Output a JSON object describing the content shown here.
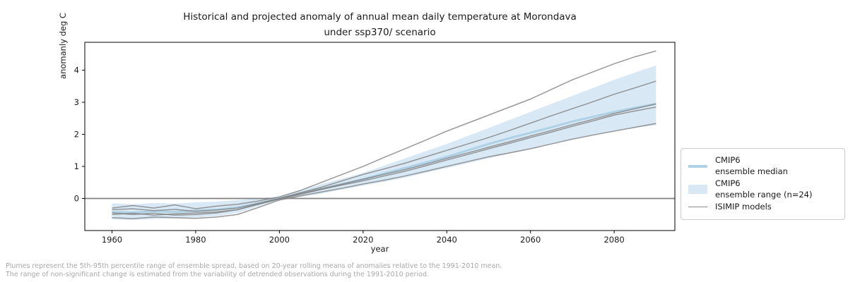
{
  "header": {
    "title": "Historical and projected anomaly of annual mean daily temperature at Morondava\nunder ssp370/ scenario"
  },
  "chart_data": {
    "type": "line",
    "title": "Historical and projected anomaly of annual mean daily temperature at Morondava under ssp370/ scenario",
    "xlabel": "year",
    "ylabel": "anomanly deg C",
    "xlim": [
      1953.5,
      2094.5
    ],
    "ylim": [
      -1.0,
      4.87
    ],
    "xticks": [
      1960,
      1980,
      2000,
      2020,
      2040,
      2060,
      2080
    ],
    "yticks": [
      0,
      1,
      2,
      3,
      4
    ],
    "zero_line": 0,
    "grid": false,
    "legend_position": "right",
    "x": [
      1960,
      1965,
      1970,
      1975,
      1980,
      1985,
      1990,
      1995,
      2000,
      2005,
      2010,
      2015,
      2020,
      2025,
      2030,
      2035,
      2040,
      2045,
      2050,
      2055,
      2060,
      2065,
      2070,
      2075,
      2080,
      2085,
      2090
    ],
    "band": {
      "name": "CMIP6 ensemble range (n=24)",
      "color": "#d9e8f5",
      "upper": [
        -0.15,
        -0.18,
        -0.14,
        -0.16,
        -0.12,
        -0.1,
        -0.05,
        0.0,
        0.06,
        0.25,
        0.45,
        0.62,
        0.8,
        1.02,
        1.25,
        1.48,
        1.7,
        1.95,
        2.2,
        2.45,
        2.7,
        2.95,
        3.2,
        3.45,
        3.7,
        3.93,
        4.15
      ],
      "lower": [
        -0.65,
        -0.67,
        -0.64,
        -0.62,
        -0.6,
        -0.55,
        -0.45,
        -0.25,
        -0.05,
        0.05,
        0.15,
        0.28,
        0.4,
        0.52,
        0.65,
        0.8,
        0.95,
        1.1,
        1.25,
        1.4,
        1.55,
        1.7,
        1.85,
        2.0,
        2.1,
        2.2,
        2.28
      ]
    },
    "series": [
      {
        "name": "CMIP6 ensemble median",
        "color": "#aed1e6",
        "width": 3,
        "opacity": 1,
        "values": [
          -0.42,
          -0.44,
          -0.4,
          -0.42,
          -0.38,
          -0.35,
          -0.28,
          -0.15,
          0.0,
          0.15,
          0.3,
          0.45,
          0.6,
          0.78,
          0.95,
          1.12,
          1.3,
          1.5,
          1.7,
          1.88,
          2.05,
          2.22,
          2.4,
          2.55,
          2.7,
          2.83,
          2.95
        ]
      },
      {
        "name": "ISIMIP model 1",
        "color": "#808080",
        "width": 1.5,
        "opacity": 0.8,
        "values": [
          -0.3,
          -0.22,
          -0.3,
          -0.2,
          -0.32,
          -0.24,
          -0.18,
          -0.08,
          0.05,
          0.25,
          0.5,
          0.75,
          1.0,
          1.28,
          1.55,
          1.82,
          2.1,
          2.35,
          2.6,
          2.85,
          3.1,
          3.4,
          3.7,
          3.95,
          4.2,
          4.42,
          4.6
        ]
      },
      {
        "name": "ISIMIP model 2",
        "color": "#808080",
        "width": 1.5,
        "opacity": 0.8,
        "values": [
          -0.45,
          -0.5,
          -0.46,
          -0.52,
          -0.5,
          -0.45,
          -0.35,
          -0.18,
          0.0,
          0.18,
          0.35,
          0.55,
          0.75,
          0.92,
          1.1,
          1.3,
          1.5,
          1.7,
          1.9,
          2.12,
          2.35,
          2.58,
          2.8,
          3.02,
          3.25,
          3.45,
          3.66
        ]
      },
      {
        "name": "ISIMIP model 3",
        "color": "#808080",
        "width": 1.5,
        "opacity": 0.8,
        "values": [
          -0.35,
          -0.32,
          -0.38,
          -0.34,
          -0.4,
          -0.36,
          -0.3,
          -0.15,
          0.0,
          0.15,
          0.3,
          0.45,
          0.6,
          0.75,
          0.9,
          1.07,
          1.25,
          1.42,
          1.6,
          1.77,
          1.95,
          2.12,
          2.3,
          2.47,
          2.65,
          2.8,
          2.95
        ]
      },
      {
        "name": "ISIMIP model 4",
        "color": "#808080",
        "width": 1.5,
        "opacity": 0.8,
        "values": [
          -0.5,
          -0.46,
          -0.52,
          -0.48,
          -0.45,
          -0.42,
          -0.35,
          -0.18,
          -0.02,
          0.13,
          0.28,
          0.42,
          0.55,
          0.7,
          0.85,
          1.02,
          1.2,
          1.37,
          1.55,
          1.72,
          1.9,
          2.07,
          2.25,
          2.42,
          2.6,
          2.73,
          2.85
        ]
      },
      {
        "name": "ISIMIP model 5",
        "color": "#808080",
        "width": 1.5,
        "opacity": 0.8,
        "values": [
          -0.6,
          -0.63,
          -0.58,
          -0.6,
          -0.62,
          -0.58,
          -0.5,
          -0.28,
          -0.05,
          0.08,
          0.2,
          0.32,
          0.45,
          0.57,
          0.7,
          0.85,
          1.0,
          1.15,
          1.3,
          1.42,
          1.55,
          1.7,
          1.85,
          1.98,
          2.1,
          2.22,
          2.34
        ]
      }
    ]
  },
  "axes": {
    "xlabel": "year",
    "ylabel": "anomanly deg C"
  },
  "legend": {
    "items": [
      {
        "label": "CMIP6\nensemble median",
        "swatch": "median-line"
      },
      {
        "label": "CMIP6\nensemble range (n=24)",
        "swatch": "range-patch"
      },
      {
        "label": "ISIMIP models",
        "swatch": "gray-line"
      }
    ]
  },
  "footnotes": {
    "line1": "Plumes represent the 5th-95th percentile range of ensemble spread, based on 20-year rolling means of anomalies relative to the 1991-2010 mean.",
    "line2": "The range of non-significant change is estimated from the variability of detrended observations during the 1991-2010 period."
  },
  "colors": {
    "band_fill": "#d9e8f5",
    "median_line": "#aed1e6",
    "isimip_line": "#808080",
    "zero_line": "#808080",
    "spine": "#000000",
    "footnote_text": "#a8a8a8"
  }
}
